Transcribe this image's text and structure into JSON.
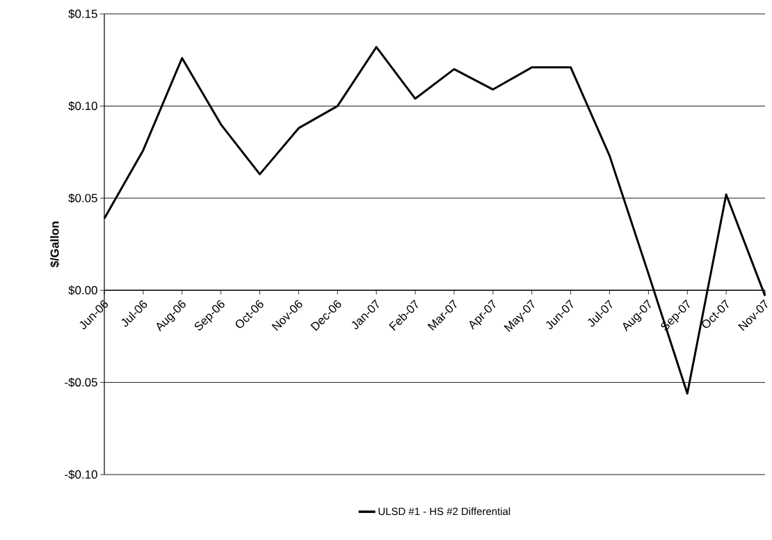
{
  "chart_data": {
    "type": "line",
    "ylabel": "$/Gallon",
    "categories": [
      "Jun-06",
      "Jul-06",
      "Aug-06",
      "Sep-06",
      "Oct-06",
      "Nov-06",
      "Dec-06",
      "Jan-07",
      "Feb-07",
      "Mar-07",
      "Apr-07",
      "May-07",
      "Jun-07",
      "Jul-07",
      "Aug-07",
      "Sep-07",
      "Oct-07",
      "Nov-07"
    ],
    "series": [
      {
        "name": "ULSD #1 - HS #2 Differential",
        "color": "#000000",
        "values": [
          0.039,
          0.076,
          0.126,
          0.09,
          0.063,
          0.088,
          0.1,
          0.132,
          0.104,
          0.12,
          0.109,
          0.121,
          0.121,
          0.073,
          0.009,
          -0.056,
          0.052,
          -0.003
        ]
      }
    ],
    "ylim": [
      -0.1,
      0.15
    ],
    "yticks": [
      {
        "value": -0.1,
        "label": "-$0.10"
      },
      {
        "value": -0.05,
        "label": "-$0.05"
      },
      {
        "value": 0.0,
        "label": "$0.00"
      },
      {
        "value": 0.05,
        "label": "$0.05"
      },
      {
        "value": 0.1,
        "label": "$0.10"
      },
      {
        "value": 0.15,
        "label": "$0.15"
      }
    ],
    "grid": "y",
    "legend": "bottom"
  }
}
